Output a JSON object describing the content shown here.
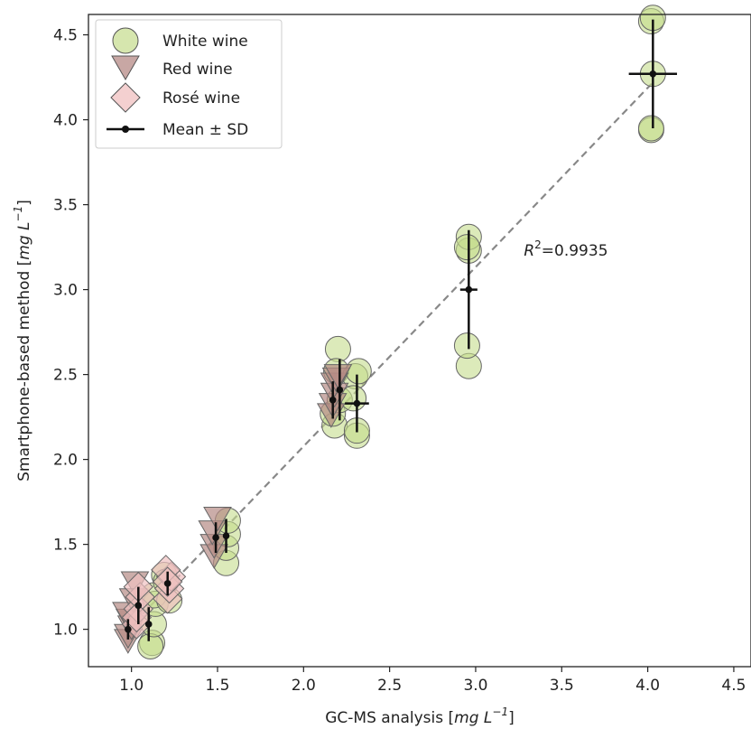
{
  "chart_data": {
    "type": "scatter",
    "xlabel": "GC-MS analysis",
    "xlabel_unit": "mg L",
    "xlabel_exp": "−1",
    "ylabel": "Smartphone-based method",
    "ylabel_unit": "mg L",
    "ylabel_exp": "−1",
    "xlim": [
      0.75,
      4.6
    ],
    "ylim": [
      0.78,
      4.62
    ],
    "xticks": [
      1.0,
      1.5,
      2.0,
      2.5,
      3.0,
      3.5,
      4.0,
      4.5
    ],
    "yticks": [
      1.0,
      1.5,
      2.0,
      2.5,
      3.0,
      3.5,
      4.0,
      4.5
    ],
    "grid": false,
    "legend_position": "top-left",
    "annotation": {
      "prefix": "R",
      "exp": "2",
      "text": "=0.9935",
      "x": 3.28,
      "y": 3.2
    },
    "fit_line": {
      "x": [
        0.97,
        4.03
      ],
      "y": [
        0.99,
        4.22
      ]
    },
    "series": [
      {
        "name": "White wine",
        "marker": "circle",
        "color": "#c4dc8c",
        "points": [
          [
            1.12,
            0.92
          ],
          [
            1.11,
            0.9
          ],
          [
            1.13,
            1.03
          ],
          [
            1.14,
            1.15
          ],
          [
            1.13,
            1.2
          ],
          [
            1.22,
            1.17
          ],
          [
            1.19,
            1.32
          ],
          [
            1.2,
            1.28
          ],
          [
            1.55,
            1.39
          ],
          [
            1.55,
            1.48
          ],
          [
            1.56,
            1.56
          ],
          [
            1.56,
            1.64
          ],
          [
            2.18,
            2.2
          ],
          [
            2.17,
            2.27
          ],
          [
            2.2,
            2.65
          ],
          [
            2.19,
            2.52
          ],
          [
            2.21,
            2.35
          ],
          [
            2.31,
            2.14
          ],
          [
            2.31,
            2.17
          ],
          [
            2.3,
            2.49
          ],
          [
            2.32,
            2.52
          ],
          [
            2.29,
            2.36
          ],
          [
            2.96,
            2.55
          ],
          [
            2.95,
            2.67
          ],
          [
            2.96,
            3.23
          ],
          [
            2.96,
            3.31
          ],
          [
            2.95,
            3.25
          ],
          [
            4.02,
            3.94
          ],
          [
            4.02,
            3.95
          ],
          [
            4.03,
            4.27
          ],
          [
            4.02,
            4.58
          ],
          [
            4.03,
            4.6
          ]
        ]
      },
      {
        "name": "Red wine",
        "marker": "triangle-down",
        "color": "#b58a85",
        "points": [
          [
            0.98,
            0.94
          ],
          [
            0.98,
            0.97
          ],
          [
            1.0,
            1.02
          ],
          [
            0.99,
            1.06
          ],
          [
            0.97,
            1.1
          ],
          [
            1.02,
            1.28
          ],
          [
            1.01,
            1.18
          ],
          [
            1.48,
            1.44
          ],
          [
            1.48,
            1.5
          ],
          [
            1.47,
            1.58
          ],
          [
            1.5,
            1.66
          ],
          [
            2.16,
            2.27
          ],
          [
            2.17,
            2.33
          ],
          [
            2.18,
            2.39
          ],
          [
            2.18,
            2.45
          ],
          [
            2.19,
            2.48
          ],
          [
            2.2,
            2.5
          ]
        ]
      },
      {
        "name": "Rosé wine",
        "marker": "diamond",
        "color": "#f0c0c0",
        "points": [
          [
            1.03,
            1.03
          ],
          [
            1.04,
            1.12
          ],
          [
            1.05,
            1.19
          ],
          [
            1.04,
            1.25
          ],
          [
            1.03,
            1.07
          ],
          [
            1.21,
            1.18
          ],
          [
            1.22,
            1.24
          ],
          [
            1.23,
            1.31
          ],
          [
            1.2,
            1.35
          ],
          [
            1.21,
            1.28
          ]
        ]
      }
    ],
    "mean_sd": {
      "name": "Mean ± SD",
      "points": [
        {
          "x": 0.98,
          "y": 1.0,
          "xerr": 0.0,
          "yerr": 0.06
        },
        {
          "x": 1.04,
          "y": 1.14,
          "xerr": 0.0,
          "yerr": 0.11
        },
        {
          "x": 1.1,
          "y": 1.03,
          "xerr": 0.0,
          "yerr": 0.1
        },
        {
          "x": 1.21,
          "y": 1.27,
          "xerr": 0.0,
          "yerr": 0.07
        },
        {
          "x": 1.49,
          "y": 1.54,
          "xerr": 0.0,
          "yerr": 0.09
        },
        {
          "x": 1.55,
          "y": 1.55,
          "xerr": 0.0,
          "yerr": 0.1
        },
        {
          "x": 2.17,
          "y": 2.35,
          "xerr": 0.0,
          "yerr": 0.11
        },
        {
          "x": 2.21,
          "y": 2.41,
          "xerr": 0.0,
          "yerr": 0.18
        },
        {
          "x": 2.31,
          "y": 2.33,
          "xerr": 0.07,
          "yerr": 0.17
        },
        {
          "x": 2.96,
          "y": 3.0,
          "xerr": 0.05,
          "yerr": 0.35
        },
        {
          "x": 4.03,
          "y": 4.27,
          "xerr": 0.14,
          "yerr": 0.32
        }
      ]
    }
  }
}
